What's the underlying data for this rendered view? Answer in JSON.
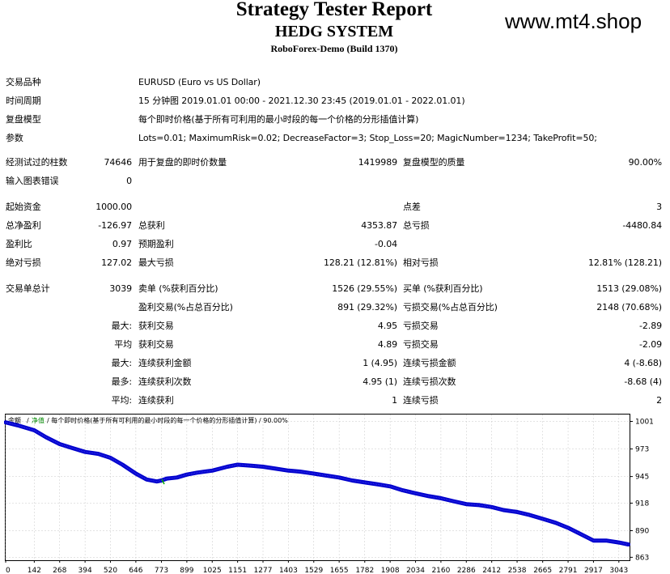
{
  "header": {
    "title": "Strategy Tester Report",
    "subtitle": "HEDG SYSTEM",
    "server": "RoboForex-Demo (Build 1370)",
    "watermark": "www.mt4.shop"
  },
  "info": {
    "symbol_label": "交易品种",
    "symbol_value": "EURUSD (Euro vs US Dollar)",
    "period_label": "时间周期",
    "period_value": "15 分钟图 2019.01.01 00:00 - 2021.12.30 23:45 (2019.01.01 - 2022.01.01)",
    "model_label": "复盘模型",
    "model_value": "每个即时价格(基于所有可利用的最小时段的每一个价格的分形插值计算)",
    "params_label": "参数",
    "params_value": "Lots=0.01; MaximumRisk=0.02; DecreaseFactor=3; Stop_Loss=20; MagicNumber=1234; TakeProfit=50;"
  },
  "stats": {
    "bars_label": "经测试过的柱数",
    "bars_value": "74646",
    "ticks_label": "用于复盘的即时价数量",
    "ticks_value": "1419989",
    "quality_label": "复盘模型的质量",
    "quality_value": "90.00%",
    "errors_label": "输入图表错误",
    "errors_value": "0",
    "deposit_label": "起始资金",
    "deposit_value": "1000.00",
    "spread_label": "点差",
    "spread_value": "3",
    "net_label": "总净盈利",
    "net_value": "-126.97",
    "gross_profit_label": "总获利",
    "gross_profit_value": "4353.87",
    "gross_loss_label": "总亏损",
    "gross_loss_value": "-4480.84",
    "pf_label": "盈利比",
    "pf_value": "0.97",
    "expected_label": "预期盈利",
    "expected_value": "-0.04",
    "abs_dd_label": "绝对亏损",
    "abs_dd_value": "127.02",
    "max_dd_label": "最大亏损",
    "max_dd_value": "128.21 (12.81%)",
    "rel_dd_label": "相对亏损",
    "rel_dd_value": "12.81% (128.21)",
    "total_trades_label": "交易单总计",
    "total_trades_value": "3039",
    "short_label": "卖单 (%获利百分比)",
    "short_value": "1526 (29.55%)",
    "long_label": "买单 (%获利百分比)",
    "long_value": "1513 (29.08%)",
    "profit_trades_label": "盈利交易(%占总百分比)",
    "profit_trades_value": "891 (29.32%)",
    "loss_trades_label": "亏损交易(%占总百分比)",
    "loss_trades_value": "2148 (70.68%)",
    "largest_prefix": "最大:",
    "largest_profit_label": "获利交易",
    "largest_profit_value": "4.95",
    "largest_loss_label": "亏损交易",
    "largest_loss_value": "-2.89",
    "average_prefix": "平均",
    "average_profit_label": "获利交易",
    "average_profit_value": "4.89",
    "average_loss_label": "亏损交易",
    "average_loss_value": "-2.09",
    "max_prefix": "最大:",
    "max_consec_wins_label": "连续获利金额",
    "max_consec_wins_value": "1 (4.95)",
    "max_consec_losses_label": "连续亏损金额",
    "max_consec_losses_value": "4 (-8.68)",
    "most_prefix": "最多:",
    "most_consec_profit_label": "连续获利次数",
    "most_consec_profit_value": "4.95 (1)",
    "most_consec_loss_label": "连续亏损次数",
    "most_consec_loss_value": "-8.68 (4)",
    "avg_prefix": "平均:",
    "avg_consec_wins_label": "连续获利",
    "avg_consec_wins_value": "1",
    "avg_consec_losses_label": "连续亏损",
    "avg_consec_losses_value": "2"
  },
  "chart_data": {
    "type": "line",
    "legend": {
      "balance": "余额",
      "separator": "/",
      "volume": "净值",
      "caption": "/ 每个即时价格(基于所有可利用的最小时段的每一个价格的分形插值计算) / 90.00%"
    },
    "x_ticks": [
      "0",
      "142",
      "268",
      "394",
      "520",
      "646",
      "773",
      "899",
      "1025",
      "1151",
      "1277",
      "1403",
      "1529",
      "1655",
      "1782",
      "1908",
      "2034",
      "2160",
      "2286",
      "2412",
      "2538",
      "2665",
      "2791",
      "2917",
      "3043"
    ],
    "y_ticks": [
      "1001",
      "973",
      "945",
      "918",
      "890",
      "863"
    ],
    "xlim": [
      0,
      3100
    ],
    "ylim": [
      860,
      1008
    ],
    "series": [
      {
        "color": "#0000cc",
        "x": [
          0,
          60,
          142,
          200,
          268,
          330,
          394,
          460,
          520,
          580,
          646,
          700,
          750,
          773,
          800,
          850,
          899,
          950,
          1025,
          1100,
          1151,
          1220,
          1277,
          1340,
          1403,
          1460,
          1529,
          1590,
          1655,
          1720,
          1782,
          1850,
          1908,
          1970,
          2034,
          2100,
          2160,
          2220,
          2286,
          2350,
          2412,
          2470,
          2538,
          2600,
          2665,
          2730,
          2791,
          2850,
          2917,
          2980,
          3043,
          3090
        ],
        "y": [
          1000,
          997,
          992,
          985,
          978,
          974,
          970,
          968,
          964,
          957,
          948,
          942,
          940,
          941,
          943,
          944,
          947,
          949,
          951,
          955,
          957,
          956,
          955,
          953,
          951,
          950,
          948,
          946,
          944,
          941,
          939,
          937,
          935,
          931,
          928,
          925,
          923,
          920,
          917,
          916,
          914,
          911,
          909,
          906,
          902,
          898,
          893,
          887,
          880,
          880,
          878,
          876
        ]
      }
    ]
  }
}
